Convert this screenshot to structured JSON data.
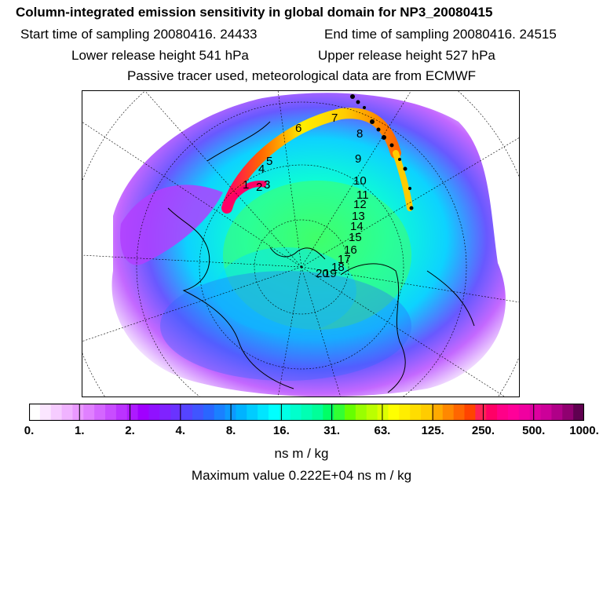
{
  "header": {
    "title": "Column-integrated emission sensitivity in global domain for NP3_20080415",
    "start_label": "Start time of sampling 20080416. 24433",
    "end_label": "End time of sampling 20080416. 24515",
    "lower_label": "Lower release height  541 hPa",
    "upper_label": "Upper release height  527 hPa",
    "tracer_note": "Passive tracer used, meteorological data are from ECMWF"
  },
  "map": {
    "day_labels": [
      "1",
      "2",
      "3",
      "4",
      "5",
      "6",
      "7",
      "8",
      "9",
      "10",
      "11",
      "12",
      "13",
      "14",
      "15",
      "16",
      "17",
      "18",
      "19",
      "20"
    ]
  },
  "colorbar": {
    "tick_labels": [
      "0.",
      "1.",
      "2.",
      "4.",
      "8.",
      "16.",
      "31.",
      "63.",
      "125.",
      "250.",
      "500.",
      "1000."
    ],
    "colors": [
      "#ffffff",
      "#fbe6ff",
      "#f6ccff",
      "#f0b3ff",
      "#ea99ff",
      "#e080ff",
      "#d466ff",
      "#c84dff",
      "#bb33ff",
      "#ad1aff",
      "#a000ff",
      "#9011ff",
      "#8022ff",
      "#6a33ff",
      "#5544ff",
      "#4055ff",
      "#2a66ff",
      "#1a80ff",
      "#0d99ff",
      "#00b3ff",
      "#00ccff",
      "#00e5ff",
      "#00ffff",
      "#00ffe6",
      "#00ffcc",
      "#00ffb3",
      "#00ff99",
      "#00ff66",
      "#33ff33",
      "#66ff00",
      "#99ff00",
      "#bbff00",
      "#ddff00",
      "#ffff00",
      "#ffee00",
      "#ffdd00",
      "#ffcc00",
      "#ffaa00",
      "#ff8800",
      "#ff6600",
      "#ff4400",
      "#ff2255",
      "#ff0066",
      "#ff0088",
      "#ff0099",
      "#f000a0",
      "#dd00a0",
      "#cc0099",
      "#b00088",
      "#900070",
      "#600050"
    ]
  },
  "footer": {
    "units": "ns m / kg",
    "max_value": "Maximum value  0.222E+04 ns m / kg"
  }
}
